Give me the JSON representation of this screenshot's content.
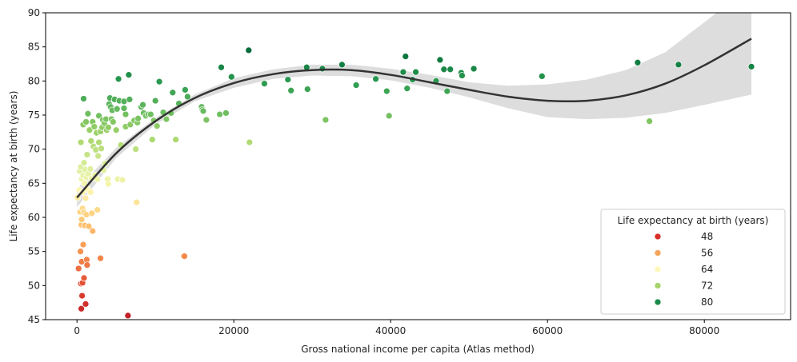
{
  "chart_data": {
    "type": "scatter",
    "title": "",
    "xlabel": "Gross national income per capita (Atlas method)",
    "ylabel": "Life expectancy at birth (years)",
    "xlim": [
      -4000,
      91000
    ],
    "ylim": [
      45,
      90
    ],
    "x_ticks": [
      0,
      20000,
      40000,
      60000,
      80000
    ],
    "y_ticks": [
      45,
      50,
      55,
      60,
      65,
      70,
      75,
      80,
      85,
      90
    ],
    "grid": false,
    "legend": {
      "title": "Life expectancy at birth (years)",
      "placement": "bottom-right",
      "entries": [
        {
          "label": "48",
          "color": "#d7302a"
        },
        {
          "label": "56",
          "color": "#f6a35c"
        },
        {
          "label": "64",
          "color": "#fdf8ba"
        },
        {
          "label": "72",
          "color": "#a5d56a"
        },
        {
          "label": "80",
          "color": "#1b8a4a"
        }
      ]
    },
    "color_scale": {
      "stops": [
        [
          45,
          "#c01a26"
        ],
        [
          50,
          "#e34b33"
        ],
        [
          55,
          "#f7934d"
        ],
        [
          60,
          "#fdce7c"
        ],
        [
          64,
          "#fdf6b0"
        ],
        [
          67,
          "#dff0a0"
        ],
        [
          72,
          "#a5d56a"
        ],
        [
          76,
          "#62b85e"
        ],
        [
          80,
          "#2a9950"
        ],
        [
          85,
          "#006837"
        ]
      ]
    },
    "regression": {
      "type": "polynomial-order-3",
      "line_color": "#333333",
      "ci_color": "#dddddd",
      "x": [
        0,
        5000,
        10000,
        15000,
        20000,
        25000,
        30000,
        35000,
        40000,
        45000,
        50000,
        55000,
        60000,
        65000,
        70000,
        75000,
        80000,
        86000
      ],
      "y": [
        62.9,
        69.4,
        74.1,
        77.5,
        79.7,
        81.0,
        81.6,
        81.6,
        80.9,
        79.8,
        78.7,
        77.7,
        77.1,
        77.1,
        77.9,
        79.6,
        82.3,
        86.2
      ],
      "ci_low": [
        61.5,
        68.7,
        73.6,
        77.0,
        79.0,
        80.3,
        80.8,
        80.7,
        80.1,
        79.0,
        77.6,
        76.0,
        74.7,
        74.4,
        74.6,
        75.3,
        76.5,
        78.0
      ],
      "ci_high": [
        64.2,
        70.2,
        74.6,
        78.0,
        80.4,
        81.7,
        82.4,
        82.4,
        81.8,
        80.9,
        79.8,
        79.3,
        79.5,
        80.2,
        81.6,
        84.2,
        88.6,
        94.0
      ]
    },
    "points": [
      {
        "x": 60,
        "y": 62.9
      },
      {
        "x": 200,
        "y": 52.5
      },
      {
        "x": 300,
        "y": 64.0
      },
      {
        "x": 350,
        "y": 66.8
      },
      {
        "x": 400,
        "y": 60.8
      },
      {
        "x": 450,
        "y": 55.0
      },
      {
        "x": 500,
        "y": 71.0
      },
      {
        "x": 500,
        "y": 67.4
      },
      {
        "x": 500,
        "y": 50.3
      },
      {
        "x": 550,
        "y": 46.6
      },
      {
        "x": 560,
        "y": 58.9
      },
      {
        "x": 600,
        "y": 65.6
      },
      {
        "x": 600,
        "y": 59.7
      },
      {
        "x": 600,
        "y": 53.5
      },
      {
        "x": 650,
        "y": 48.5
      },
      {
        "x": 700,
        "y": 61.3
      },
      {
        "x": 700,
        "y": 50.4
      },
      {
        "x": 750,
        "y": 63.7
      },
      {
        "x": 800,
        "y": 73.6
      },
      {
        "x": 800,
        "y": 66.1
      },
      {
        "x": 800,
        "y": 56.0
      },
      {
        "x": 850,
        "y": 77.4
      },
      {
        "x": 900,
        "y": 68.0
      },
      {
        "x": 900,
        "y": 60.7
      },
      {
        "x": 900,
        "y": 51.1
      },
      {
        "x": 950,
        "y": 65.0
      },
      {
        "x": 1000,
        "y": 58.8
      },
      {
        "x": 1050,
        "y": 67.0
      },
      {
        "x": 1100,
        "y": 62.8
      },
      {
        "x": 1100,
        "y": 47.3
      },
      {
        "x": 1150,
        "y": 74.0
      },
      {
        "x": 1200,
        "y": 65.9
      },
      {
        "x": 1200,
        "y": 60.4
      },
      {
        "x": 1250,
        "y": 53.8
      },
      {
        "x": 1300,
        "y": 69.2
      },
      {
        "x": 1300,
        "y": 53.0
      },
      {
        "x": 1350,
        "y": 64.1
      },
      {
        "x": 1400,
        "y": 75.2
      },
      {
        "x": 1450,
        "y": 66.4
      },
      {
        "x": 1500,
        "y": 58.7
      },
      {
        "x": 1600,
        "y": 72.8
      },
      {
        "x": 1700,
        "y": 67.1
      },
      {
        "x": 1750,
        "y": 63.7
      },
      {
        "x": 1800,
        "y": 71.2
      },
      {
        "x": 1850,
        "y": 65.7
      },
      {
        "x": 1900,
        "y": 60.6
      },
      {
        "x": 2000,
        "y": 74.0
      },
      {
        "x": 2000,
        "y": 58.0
      },
      {
        "x": 2100,
        "y": 70.4
      },
      {
        "x": 2200,
        "y": 73.3
      },
      {
        "x": 2300,
        "y": 66.2
      },
      {
        "x": 2400,
        "y": 69.9
      },
      {
        "x": 2500,
        "y": 72.4
      },
      {
        "x": 2600,
        "y": 65.6
      },
      {
        "x": 2600,
        "y": 61.1
      },
      {
        "x": 2700,
        "y": 69.0
      },
      {
        "x": 2800,
        "y": 71.0
      },
      {
        "x": 2800,
        "y": 74.9
      },
      {
        "x": 3000,
        "y": 72.6
      },
      {
        "x": 3000,
        "y": 54.0
      },
      {
        "x": 3100,
        "y": 70.1
      },
      {
        "x": 3200,
        "y": 73.2
      },
      {
        "x": 3300,
        "y": 74.3
      },
      {
        "x": 3400,
        "y": 66.9
      },
      {
        "x": 3500,
        "y": 73.8
      },
      {
        "x": 3600,
        "y": 67.9
      },
      {
        "x": 3700,
        "y": 74.4
      },
      {
        "x": 3800,
        "y": 72.8
      },
      {
        "x": 3900,
        "y": 65.6
      },
      {
        "x": 4000,
        "y": 73.2
      },
      {
        "x": 4000,
        "y": 64.9
      },
      {
        "x": 4100,
        "y": 76.6
      },
      {
        "x": 4200,
        "y": 77.5
      },
      {
        "x": 4300,
        "y": 76.2
      },
      {
        "x": 4400,
        "y": 74.4
      },
      {
        "x": 4500,
        "y": 75.7
      },
      {
        "x": 4600,
        "y": 74.0
      },
      {
        "x": 4800,
        "y": 77.3
      },
      {
        "x": 5000,
        "y": 72.8
      },
      {
        "x": 5100,
        "y": 75.9
      },
      {
        "x": 5200,
        "y": 65.6
      },
      {
        "x": 5300,
        "y": 80.3
      },
      {
        "x": 5400,
        "y": 77.1
      },
      {
        "x": 5600,
        "y": 70.6
      },
      {
        "x": 5800,
        "y": 65.5
      },
      {
        "x": 6000,
        "y": 76.0
      },
      {
        "x": 6000,
        "y": 77.0
      },
      {
        "x": 6200,
        "y": 73.3
      },
      {
        "x": 6200,
        "y": 75.1
      },
      {
        "x": 6500,
        "y": 45.6
      },
      {
        "x": 6600,
        "y": 80.9
      },
      {
        "x": 6700,
        "y": 77.3
      },
      {
        "x": 6800,
        "y": 73.6
      },
      {
        "x": 7300,
        "y": 74.2
      },
      {
        "x": 7500,
        "y": 70.0
      },
      {
        "x": 7600,
        "y": 62.2
      },
      {
        "x": 7700,
        "y": 73.9
      },
      {
        "x": 7800,
        "y": 74.5
      },
      {
        "x": 8200,
        "y": 76.2
      },
      {
        "x": 8400,
        "y": 76.5
      },
      {
        "x": 8500,
        "y": 75.3
      },
      {
        "x": 8800,
        "y": 74.9
      },
      {
        "x": 9100,
        "y": 75.1
      },
      {
        "x": 9400,
        "y": 75.1
      },
      {
        "x": 9600,
        "y": 71.4
      },
      {
        "x": 9800,
        "y": 74.2
      },
      {
        "x": 10000,
        "y": 77.1
      },
      {
        "x": 10200,
        "y": 73.4
      },
      {
        "x": 10500,
        "y": 79.9
      },
      {
        "x": 11000,
        "y": 75.4
      },
      {
        "x": 11400,
        "y": 74.4
      },
      {
        "x": 12000,
        "y": 75.3
      },
      {
        "x": 12200,
        "y": 78.3
      },
      {
        "x": 12600,
        "y": 71.4
      },
      {
        "x": 13000,
        "y": 76.7
      },
      {
        "x": 13600,
        "y": 54.3
      },
      {
        "x": 13700,
        "y": 54.3
      },
      {
        "x": 13800,
        "y": 78.7
      },
      {
        "x": 14100,
        "y": 77.7
      },
      {
        "x": 15900,
        "y": 76.2
      },
      {
        "x": 16000,
        "y": 75.8
      },
      {
        "x": 16100,
        "y": 75.6
      },
      {
        "x": 16500,
        "y": 74.3
      },
      {
        "x": 18200,
        "y": 75.1
      },
      {
        "x": 18400,
        "y": 82.0
      },
      {
        "x": 19000,
        "y": 75.3
      },
      {
        "x": 19700,
        "y": 80.6
      },
      {
        "x": 21900,
        "y": 84.5
      },
      {
        "x": 22000,
        "y": 71.0
      },
      {
        "x": 23900,
        "y": 79.6
      },
      {
        "x": 26900,
        "y": 80.2
      },
      {
        "x": 27300,
        "y": 78.6
      },
      {
        "x": 29300,
        "y": 82.0
      },
      {
        "x": 29400,
        "y": 78.8
      },
      {
        "x": 31300,
        "y": 81.8
      },
      {
        "x": 31700,
        "y": 74.3
      },
      {
        "x": 33800,
        "y": 82.4
      },
      {
        "x": 35600,
        "y": 79.4
      },
      {
        "x": 38100,
        "y": 80.3
      },
      {
        "x": 39500,
        "y": 78.5
      },
      {
        "x": 39800,
        "y": 74.9
      },
      {
        "x": 41600,
        "y": 81.3
      },
      {
        "x": 41900,
        "y": 83.6
      },
      {
        "x": 42100,
        "y": 78.9
      },
      {
        "x": 42800,
        "y": 80.2
      },
      {
        "x": 43200,
        "y": 81.3
      },
      {
        "x": 45800,
        "y": 80.0
      },
      {
        "x": 46300,
        "y": 83.1
      },
      {
        "x": 46800,
        "y": 81.7
      },
      {
        "x": 47200,
        "y": 78.5
      },
      {
        "x": 47600,
        "y": 81.7
      },
      {
        "x": 49000,
        "y": 81.2
      },
      {
        "x": 49100,
        "y": 80.8
      },
      {
        "x": 50600,
        "y": 81.8
      },
      {
        "x": 59300,
        "y": 80.7
      },
      {
        "x": 71500,
        "y": 82.7
      },
      {
        "x": 73000,
        "y": 74.1
      },
      {
        "x": 76700,
        "y": 82.4
      },
      {
        "x": 86000,
        "y": 82.1
      }
    ]
  }
}
